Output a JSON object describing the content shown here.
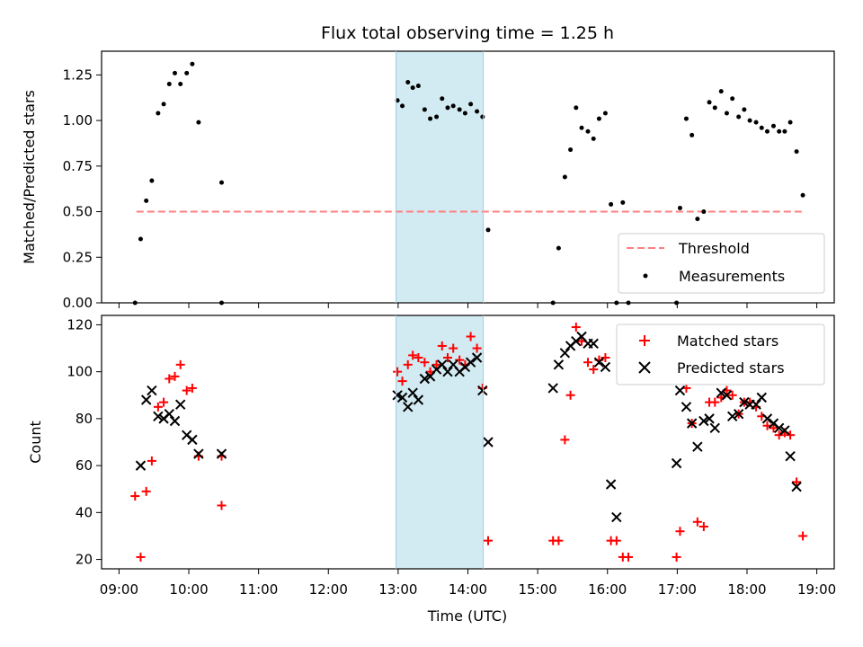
{
  "chart_data": {
    "title": "Flux total observing time = 1.25 h",
    "xlabel": "Time (UTC)",
    "xlim_hours": [
      8.75,
      19.25
    ],
    "xticks": [
      {
        "value": 9,
        "label": "09:00"
      },
      {
        "value": 10,
        "label": "10:00"
      },
      {
        "value": 11,
        "label": "11:00"
      },
      {
        "value": 12,
        "label": "12:00"
      },
      {
        "value": 13,
        "label": "13:00"
      },
      {
        "value": 14,
        "label": "14:00"
      },
      {
        "value": 15,
        "label": "15:00"
      },
      {
        "value": 16,
        "label": "16:00"
      },
      {
        "value": 17,
        "label": "17:00"
      },
      {
        "value": 18,
        "label": "18:00"
      },
      {
        "value": 19,
        "label": "19:00"
      }
    ],
    "highlight_span_hours": [
      12.97,
      14.22
    ],
    "highlight_color": "#add8e6",
    "panels": [
      {
        "type": "scatter",
        "ylabel": "Matched/Predicted stars",
        "ylim": [
          0,
          1.38
        ],
        "yticks": [
          {
            "value": 0,
            "label": "0.00"
          },
          {
            "value": 0.25,
            "label": "0.25"
          },
          {
            "value": 0.5,
            "label": "0.50"
          },
          {
            "value": 0.75,
            "label": "0.75"
          },
          {
            "value": 1.0,
            "label": "1.00"
          },
          {
            "value": 1.25,
            "label": "1.25"
          }
        ],
        "legend_position": "lower-right",
        "threshold": {
          "name": "Threshold",
          "y": 0.5,
          "x_range": [
            9.25,
            18.8
          ],
          "color": "#ff7f7f",
          "style": "dashed"
        },
        "series": [
          {
            "name": "Measurements",
            "marker": "dot",
            "color": "#000000",
            "points": [
              [
                9.23,
                0.0
              ],
              [
                9.31,
                0.35
              ],
              [
                9.39,
                0.56
              ],
              [
                9.47,
                0.67
              ],
              [
                9.56,
                1.04
              ],
              [
                9.64,
                1.09
              ],
              [
                9.72,
                1.2
              ],
              [
                9.8,
                1.26
              ],
              [
                9.88,
                1.2
              ],
              [
                9.97,
                1.26
              ],
              [
                10.05,
                1.31
              ],
              [
                10.14,
                0.99
              ],
              [
                10.47,
                0.66
              ],
              [
                10.47,
                0.0
              ],
              [
                12.99,
                1.11
              ],
              [
                13.06,
                1.08
              ],
              [
                13.14,
                1.21
              ],
              [
                13.21,
                1.18
              ],
              [
                13.29,
                1.19
              ],
              [
                13.38,
                1.06
              ],
              [
                13.46,
                1.01
              ],
              [
                13.55,
                1.02
              ],
              [
                13.63,
                1.12
              ],
              [
                13.71,
                1.07
              ],
              [
                13.79,
                1.08
              ],
              [
                13.88,
                1.06
              ],
              [
                13.96,
                1.04
              ],
              [
                14.04,
                1.09
              ],
              [
                14.13,
                1.05
              ],
              [
                14.21,
                1.02
              ],
              [
                14.29,
                0.4
              ],
              [
                15.22,
                0.0
              ],
              [
                15.3,
                0.3
              ],
              [
                15.39,
                0.69
              ],
              [
                15.47,
                0.84
              ],
              [
                15.55,
                1.07
              ],
              [
                15.63,
                0.96
              ],
              [
                15.72,
                0.94
              ],
              [
                15.8,
                0.9
              ],
              [
                15.88,
                1.01
              ],
              [
                15.97,
                1.04
              ],
              [
                16.05,
                0.54
              ],
              [
                16.13,
                0.0
              ],
              [
                16.22,
                0.55
              ],
              [
                16.3,
                0.0
              ],
              [
                16.99,
                0.0
              ],
              [
                17.04,
                0.52
              ],
              [
                17.13,
                1.01
              ],
              [
                17.21,
                0.92
              ],
              [
                17.29,
                0.46
              ],
              [
                17.38,
                0.5
              ],
              [
                17.46,
                1.1
              ],
              [
                17.54,
                1.07
              ],
              [
                17.63,
                1.16
              ],
              [
                17.71,
                1.04
              ],
              [
                17.79,
                1.12
              ],
              [
                17.88,
                1.02
              ],
              [
                17.96,
                1.06
              ],
              [
                18.04,
                1.0
              ],
              [
                18.13,
                0.99
              ],
              [
                18.21,
                0.96
              ],
              [
                18.29,
                0.94
              ],
              [
                18.38,
                0.97
              ],
              [
                18.46,
                0.94
              ],
              [
                18.54,
                0.94
              ],
              [
                18.62,
                0.99
              ],
              [
                18.71,
                0.83
              ],
              [
                18.8,
                0.59
              ]
            ]
          }
        ]
      },
      {
        "type": "scatter",
        "ylabel": "Count",
        "ylim": [
          16,
          124
        ],
        "yticks": [
          {
            "value": 20,
            "label": "20"
          },
          {
            "value": 40,
            "label": "40"
          },
          {
            "value": 60,
            "label": "60"
          },
          {
            "value": 80,
            "label": "80"
          },
          {
            "value": 100,
            "label": "100"
          },
          {
            "value": 120,
            "label": "120"
          }
        ],
        "legend_position": "upper-right",
        "series": [
          {
            "name": "Matched stars",
            "marker": "plus",
            "color": "#ff0000",
            "points": [
              [
                9.23,
                47
              ],
              [
                9.31,
                21
              ],
              [
                9.39,
                49
              ],
              [
                9.47,
                62
              ],
              [
                9.56,
                85
              ],
              [
                9.64,
                87
              ],
              [
                9.72,
                97
              ],
              [
                9.8,
                98
              ],
              [
                9.88,
                103
              ],
              [
                9.97,
                92
              ],
              [
                10.05,
                93
              ],
              [
                10.14,
                64
              ],
              [
                10.47,
                64
              ],
              [
                10.47,
                43
              ],
              [
                12.99,
                100
              ],
              [
                13.06,
                96
              ],
              [
                13.14,
                103
              ],
              [
                13.21,
                107
              ],
              [
                13.29,
                106
              ],
              [
                13.38,
                104
              ],
              [
                13.46,
                100
              ],
              [
                13.55,
                103
              ],
              [
                13.63,
                111
              ],
              [
                13.71,
                106
              ],
              [
                13.79,
                110
              ],
              [
                13.88,
                105
              ],
              [
                13.96,
                103
              ],
              [
                14.04,
                115
              ],
              [
                14.13,
                110
              ],
              [
                14.21,
                93
              ],
              [
                14.29,
                28
              ],
              [
                15.22,
                28
              ],
              [
                15.3,
                28
              ],
              [
                15.39,
                71
              ],
              [
                15.47,
                90
              ],
              [
                15.55,
                119
              ],
              [
                15.63,
                113
              ],
              [
                15.72,
                104
              ],
              [
                15.8,
                101
              ],
              [
                15.88,
                105
              ],
              [
                15.97,
                106
              ],
              [
                16.05,
                28
              ],
              [
                16.13,
                28
              ],
              [
                16.22,
                21
              ],
              [
                16.3,
                21
              ],
              [
                16.99,
                21
              ],
              [
                17.04,
                32
              ],
              [
                17.13,
                93
              ],
              [
                17.21,
                78
              ],
              [
                17.29,
                36
              ],
              [
                17.38,
                34
              ],
              [
                17.46,
                87
              ],
              [
                17.54,
                87
              ],
              [
                17.63,
                89
              ],
              [
                17.71,
                92
              ],
              [
                17.79,
                90
              ],
              [
                17.88,
                82
              ],
              [
                17.96,
                87
              ],
              [
                18.04,
                87
              ],
              [
                18.13,
                85
              ],
              [
                18.21,
                81
              ],
              [
                18.29,
                77
              ],
              [
                18.38,
                76
              ],
              [
                18.46,
                73
              ],
              [
                18.54,
                74
              ],
              [
                18.62,
                73
              ],
              [
                18.71,
                53
              ],
              [
                18.8,
                30
              ]
            ]
          },
          {
            "name": "Predicted stars",
            "marker": "x",
            "color": "#000000",
            "points": [
              [
                9.31,
                60
              ],
              [
                9.39,
                88
              ],
              [
                9.47,
                92
              ],
              [
                9.56,
                81
              ],
              [
                9.64,
                80
              ],
              [
                9.72,
                82
              ],
              [
                9.8,
                79
              ],
              [
                9.88,
                86
              ],
              [
                9.97,
                73
              ],
              [
                10.05,
                71
              ],
              [
                10.14,
                65
              ],
              [
                10.47,
                65
              ],
              [
                12.99,
                90
              ],
              [
                13.06,
                89
              ],
              [
                13.14,
                85
              ],
              [
                13.21,
                91
              ],
              [
                13.29,
                88
              ],
              [
                13.38,
                97
              ],
              [
                13.46,
                98
              ],
              [
                13.55,
                101
              ],
              [
                13.63,
                103
              ],
              [
                13.71,
                100
              ],
              [
                13.79,
                103
              ],
              [
                13.88,
                100
              ],
              [
                13.96,
                102
              ],
              [
                14.04,
                104
              ],
              [
                14.13,
                106
              ],
              [
                14.21,
                92
              ],
              [
                14.29,
                70
              ],
              [
                15.22,
                93
              ],
              [
                15.3,
                103
              ],
              [
                15.39,
                108
              ],
              [
                15.47,
                111
              ],
              [
                15.55,
                113
              ],
              [
                15.63,
                115
              ],
              [
                15.72,
                112
              ],
              [
                15.8,
                112
              ],
              [
                15.88,
                104
              ],
              [
                15.97,
                102
              ],
              [
                16.05,
                52
              ],
              [
                16.13,
                38
              ],
              [
                16.99,
                61
              ],
              [
                17.04,
                92
              ],
              [
                17.13,
                85
              ],
              [
                17.21,
                78
              ],
              [
                17.29,
                68
              ],
              [
                17.38,
                79
              ],
              [
                17.46,
                80
              ],
              [
                17.54,
                76
              ],
              [
                17.63,
                91
              ],
              [
                17.71,
                90
              ],
              [
                17.79,
                81
              ],
              [
                17.88,
                82
              ],
              [
                17.96,
                87
              ],
              [
                18.04,
                86
              ],
              [
                18.13,
                86
              ],
              [
                18.21,
                89
              ],
              [
                18.29,
                80
              ],
              [
                18.38,
                78
              ],
              [
                18.46,
                76
              ],
              [
                18.54,
                75
              ],
              [
                18.62,
                64
              ],
              [
                18.71,
                51
              ]
            ]
          }
        ]
      }
    ]
  }
}
